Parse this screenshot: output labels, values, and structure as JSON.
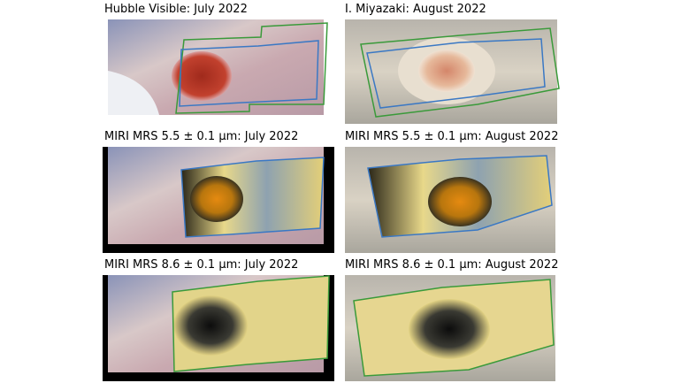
{
  "panels": [
    {
      "title": "Hubble Visible: July 2022"
    },
    {
      "title": "I. Miyazaki: August 2022"
    },
    {
      "title": "MIRI MRS 5.5 ± 0.1 µm: July 2022"
    },
    {
      "title": "MIRI MRS 5.5 ± 0.1 µm: August 2022"
    },
    {
      "title": "MIRI MRS 8.6 ± 0.1 µm: July 2022"
    },
    {
      "title": "MIRI MRS 8.6 ± 0.1 µm: August 2022"
    }
  ]
}
